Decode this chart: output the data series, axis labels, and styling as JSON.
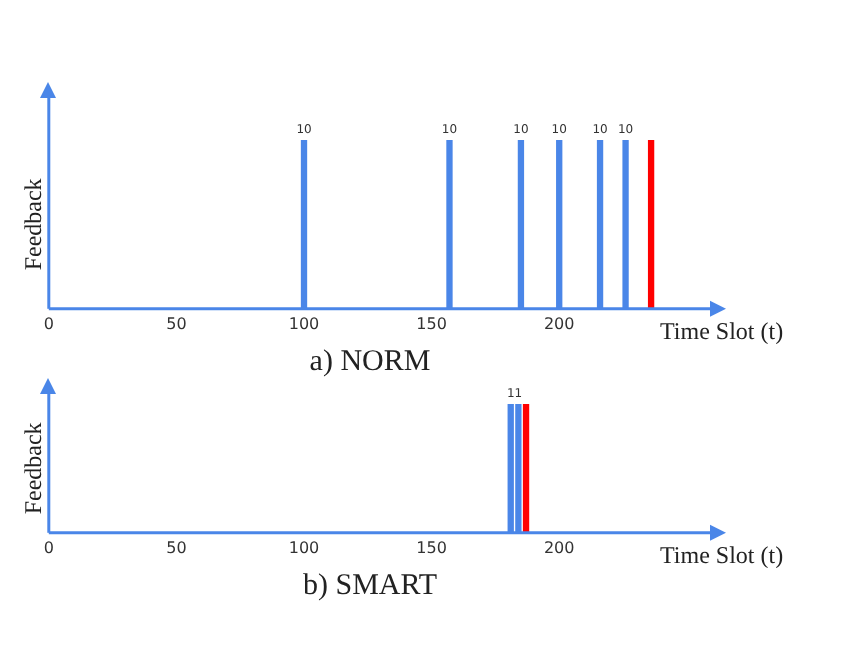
{
  "chart_data": [
    {
      "type": "bar",
      "title": "a) NORM",
      "xlabel": "Time Slot (t)",
      "ylabel": "Feedback",
      "x": [
        100,
        157,
        185,
        200,
        216,
        226,
        236
      ],
      "values": [
        10,
        10,
        10,
        10,
        10,
        10,
        10
      ],
      "colors": [
        "#4a86e8",
        "#4a86e8",
        "#4a86e8",
        "#4a86e8",
        "#4a86e8",
        "#4a86e8",
        "#ff0000"
      ],
      "value_labels": [
        "10",
        "10",
        "10",
        "10",
        "10",
        "10",
        null
      ],
      "xlim": [
        0,
        263
      ],
      "xticks": [
        0,
        50,
        100,
        150,
        200
      ]
    },
    {
      "type": "bar",
      "title": "b) SMART",
      "xlabel": "Time Slot (t)",
      "ylabel": "Feedback",
      "x": [
        181,
        184,
        187
      ],
      "values": [
        1,
        1,
        1
      ],
      "colors": [
        "#4a86e8",
        "#4a86e8",
        "#ff0000"
      ],
      "value_labels": [
        "1",
        "1",
        null
      ],
      "xlim": [
        0,
        263
      ],
      "xticks": [
        0,
        50,
        100,
        150,
        200
      ]
    }
  ]
}
